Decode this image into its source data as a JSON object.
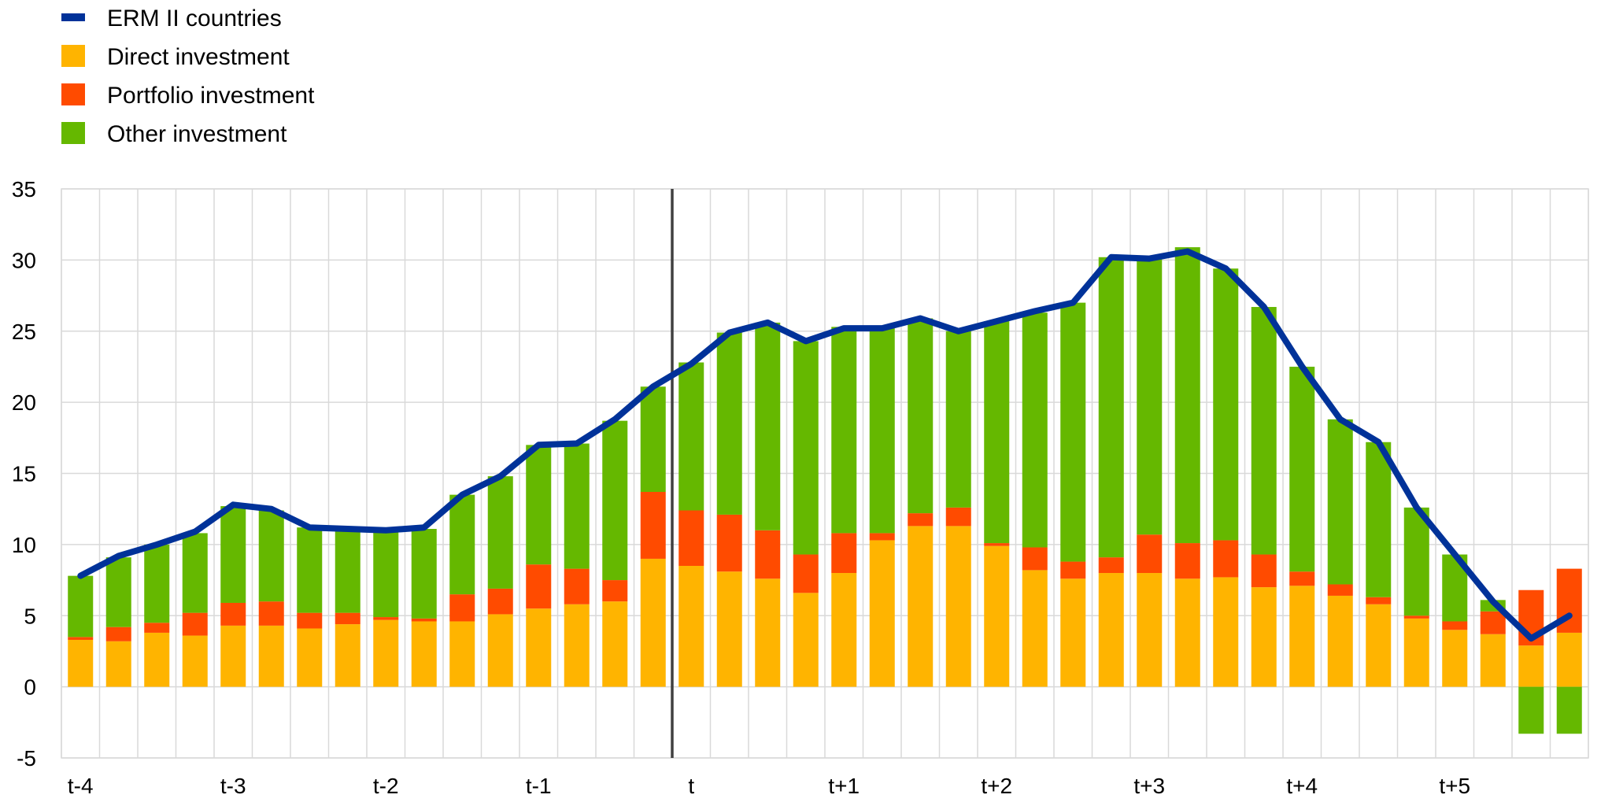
{
  "chart_data": {
    "type": "bar",
    "stacked": true,
    "categories": [
      "t-4",
      "",
      "",
      "",
      "t-3",
      "",
      "",
      "",
      "t-2",
      "",
      "",
      "",
      "t-1",
      "",
      "",
      "",
      "t",
      "",
      "",
      "",
      "t+1",
      "",
      "",
      "",
      "t+2",
      "",
      "",
      "",
      "t+3",
      "",
      "",
      "",
      "t+4",
      "",
      "",
      "",
      "t+5",
      "",
      "",
      ""
    ],
    "x_tick_labels": [
      "t-4",
      "t-3",
      "t-2",
      "t-1",
      "t",
      "t+1",
      "t+2",
      "t+3",
      "t+4",
      "t+5"
    ],
    "series": [
      {
        "name": "Direct investment",
        "type": "bar",
        "color": "#FFB400",
        "values": [
          3.3,
          3.2,
          3.8,
          3.6,
          4.3,
          4.3,
          4.1,
          4.4,
          4.7,
          4.6,
          4.6,
          5.1,
          5.5,
          5.8,
          6.0,
          9.0,
          8.5,
          8.1,
          7.6,
          6.6,
          8.0,
          10.3,
          11.3,
          11.3,
          9.9,
          8.2,
          7.6,
          8.0,
          8.0,
          7.6,
          7.7,
          7.0,
          7.1,
          6.4,
          5.8,
          4.8,
          4.0,
          3.7,
          2.9,
          3.8
        ]
      },
      {
        "name": "Portfolio investment",
        "type": "bar",
        "color": "#FF4B00",
        "values": [
          0.2,
          1.0,
          0.7,
          1.6,
          1.6,
          1.7,
          1.1,
          0.8,
          0.2,
          0.2,
          1.9,
          1.8,
          3.1,
          2.5,
          1.5,
          4.7,
          3.9,
          4.0,
          3.4,
          2.7,
          2.8,
          0.5,
          0.9,
          1.3,
          0.2,
          1.6,
          1.2,
          1.1,
          2.7,
          2.5,
          2.6,
          2.3,
          1.0,
          0.8,
          0.5,
          0.2,
          0.6,
          1.6,
          3.9,
          4.5
        ]
      },
      {
        "name": "Other investment",
        "type": "bar",
        "color": "#65B800",
        "values": [
          4.3,
          4.9,
          5.5,
          5.6,
          6.8,
          6.4,
          6.0,
          5.9,
          6.0,
          6.3,
          7.0,
          7.9,
          8.4,
          8.8,
          11.2,
          7.4,
          10.4,
          12.8,
          14.6,
          15.0,
          14.5,
          14.5,
          13.7,
          12.4,
          15.6,
          16.5,
          18.2,
          21.1,
          19.4,
          20.8,
          19.1,
          17.4,
          14.4,
          11.6,
          10.9,
          7.6,
          4.7,
          0.8,
          -3.3,
          -3.3
        ]
      },
      {
        "name": "ERM II countries",
        "type": "line",
        "color": "#003299",
        "values": [
          7.8,
          9.2,
          10.0,
          10.9,
          12.8,
          12.5,
          11.2,
          11.1,
          11.0,
          11.2,
          13.5,
          14.8,
          17.0,
          17.1,
          18.8,
          21.1,
          22.7,
          24.9,
          25.6,
          24.3,
          25.2,
          25.2,
          25.9,
          25.0,
          25.7,
          26.4,
          27.0,
          30.2,
          30.1,
          30.6,
          29.4,
          26.7,
          22.5,
          18.8,
          17.2,
          12.6,
          9.3,
          6.0,
          3.4,
          5.0
        ]
      }
    ],
    "ylim": [
      -5,
      35
    ],
    "y_ticks": [
      -5,
      0,
      5,
      10,
      15,
      20,
      25,
      30,
      35
    ],
    "title": "",
    "xlabel": "",
    "ylabel": "",
    "grid": true,
    "legend_position": "top-left",
    "vertical_marker_at": "t"
  }
}
